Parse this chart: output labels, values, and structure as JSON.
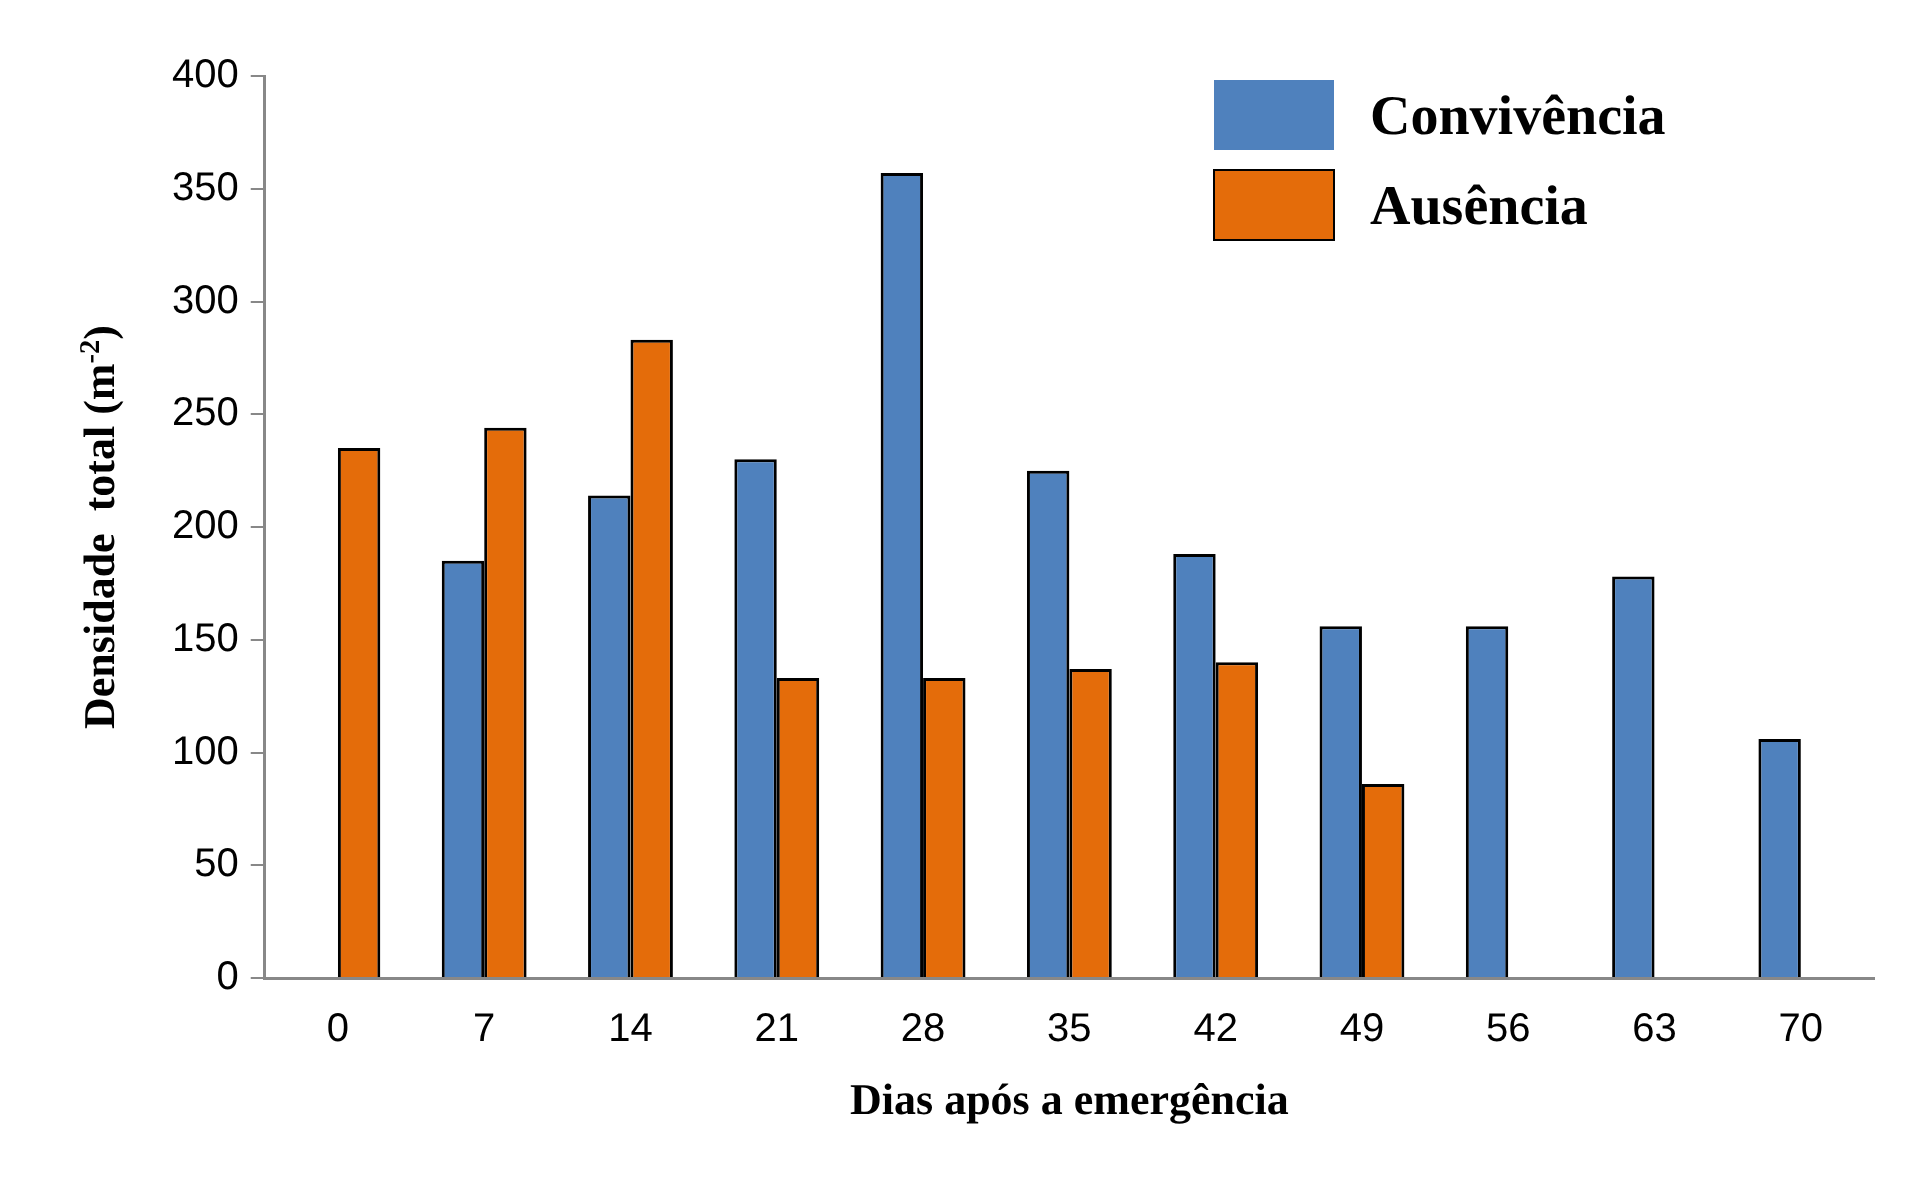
{
  "chart_data": {
    "type": "bar",
    "xlabel": "Dias após a emergência",
    "ylabel": "Densidade  total (m$^{-2}$)",
    "categories": [
      "0",
      "7",
      "14",
      "21",
      "28",
      "35",
      "42",
      "49",
      "56",
      "63",
      "70"
    ],
    "series": [
      {
        "name": "Convivência",
        "color": "#4f81bd",
        "values": [
          null,
          185,
          214,
          230,
          357,
          225,
          188,
          156,
          156,
          178,
          106
        ]
      },
      {
        "name": "Ausência",
        "color": "#e46c0a",
        "values": [
          235,
          244,
          283,
          133,
          133,
          137,
          140,
          86,
          null,
          null,
          null
        ]
      }
    ],
    "ylim": [
      0,
      400
    ],
    "yticks": [
      0,
      50,
      100,
      150,
      200,
      250,
      300,
      350,
      400
    ],
    "grid": false,
    "legend": "top right"
  }
}
